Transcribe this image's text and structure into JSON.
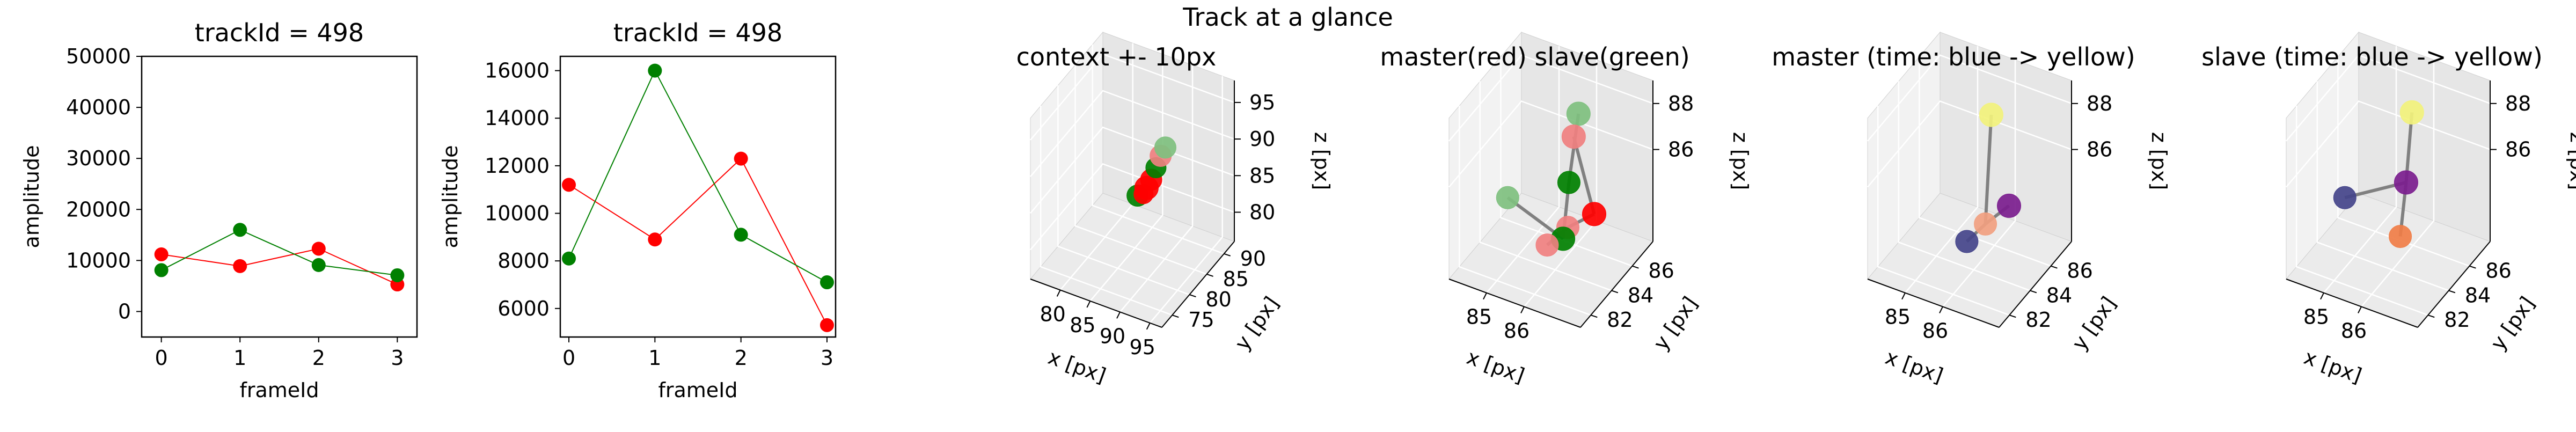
{
  "figure": {
    "suptitle": "Track at a glance"
  },
  "colors": {
    "master": "#ff0000",
    "slave": "#008000",
    "master_soft": "#f08080",
    "slave_soft": "#7fc07f",
    "pane_left": "#f2f2f2",
    "pane_right": "#e6e6e6",
    "pane_floor": "#ebebeb",
    "link": "#808080",
    "time_start": "#44448a",
    "time_end": "#f0f07a"
  },
  "chart_data": [
    {
      "type": "line",
      "title": "trackId = 498",
      "xlabel": "frameId",
      "ylabel": "amplitude",
      "x": [
        0,
        1,
        2,
        3
      ],
      "xlim": [
        -0.25,
        3.25
      ],
      "ylim": [
        -5000,
        50000
      ],
      "yticks": [
        0,
        10000,
        20000,
        30000,
        40000,
        50000
      ],
      "xticks": [
        0,
        1,
        2,
        3
      ],
      "series": [
        {
          "values": [
            11200,
            8900,
            12300,
            5300
          ],
          "color": "#ff0000"
        },
        {
          "values": [
            8100,
            16000,
            9100,
            7100
          ],
          "color": "#008000"
        }
      ]
    },
    {
      "type": "line",
      "title": "trackId = 498",
      "xlabel": "frameId",
      "ylabel": "amplitude",
      "x": [
        0,
        1,
        2,
        3
      ],
      "xlim": [
        -0.1,
        3.1
      ],
      "ylim": [
        4800,
        16600
      ],
      "yticks": [
        6000,
        8000,
        10000,
        12000,
        14000,
        16000
      ],
      "xticks": [
        0,
        1,
        2,
        3
      ],
      "series": [
        {
          "values": [
            11200,
            8900,
            12300,
            5300
          ],
          "color": "#ff0000"
        },
        {
          "values": [
            8100,
            16000,
            9100,
            7100
          ],
          "color": "#008000"
        }
      ]
    },
    {
      "type": "scatter",
      "title": "context +- 10px",
      "xlabel": "x [px]",
      "ylabel": "y [px]",
      "zlabel": "z [px]",
      "xlim": [
        75,
        97
      ],
      "ylim": [
        72,
        93
      ],
      "zlim": [
        76,
        98
      ],
      "xticks": [
        80,
        85,
        90,
        95
      ],
      "yticks": [
        75,
        80,
        85,
        90
      ],
      "zticks": [
        80,
        85,
        90,
        95
      ],
      "points": [
        {
          "x": 86,
          "y": 84,
          "z": 84,
          "color": "#008000",
          "r": 20
        },
        {
          "x": 87.5,
          "y": 84,
          "z": 85.5,
          "color": "#ff0000",
          "r": 22
        },
        {
          "x": 88,
          "y": 84.5,
          "z": 86.5,
          "color": "#ff0000",
          "r": 20
        },
        {
          "x": 87,
          "y": 84,
          "z": 84.5,
          "color": "#ff0000",
          "r": 18
        },
        {
          "x": 88.5,
          "y": 85,
          "z": 88,
          "color": "#008000",
          "r": 19
        },
        {
          "x": 89,
          "y": 85.5,
          "z": 89.5,
          "color": "#f08080",
          "r": 20
        },
        {
          "x": 89.5,
          "y": 86,
          "z": 90.5,
          "color": "#7fc07f",
          "r": 20
        }
      ]
    },
    {
      "type": "scatter",
      "title": "master(red) slave(green)",
      "xlabel": "x [px]",
      "ylabel": "y [px]",
      "zlabel": "z [px]",
      "xlim": [
        84,
        87.5
      ],
      "ylim": [
        81,
        88
      ],
      "zlim": [
        82,
        89
      ],
      "xticks": [
        85,
        86
      ],
      "yticks": [
        82,
        84,
        86
      ],
      "zticks": [
        86,
        88
      ],
      "points": [
        {
          "x": 86.4,
          "y": 84.8,
          "z": 88.6,
          "color": "#7fc07f",
          "r": 22
        },
        {
          "x": 86.3,
          "y": 84.7,
          "z": 87.6,
          "color": "#f08080",
          "r": 22
        },
        {
          "x": 86.2,
          "y": 84.6,
          "z": 85.6,
          "color": "#008000",
          "r": 21
        },
        {
          "x": 86.9,
          "y": 84.5,
          "z": 84.7,
          "color": "#ff0000",
          "r": 22
        },
        {
          "x": 86.2,
          "y": 84.5,
          "z": 83.7,
          "color": "#f08080",
          "r": 21
        },
        {
          "x": 86.1,
          "y": 84.4,
          "z": 83.2,
          "color": "#008000",
          "r": 22
        },
        {
          "x": 84.9,
          "y": 83.4,
          "z": 84.8,
          "color": "#7fc07f",
          "r": 21
        },
        {
          "x": 86.2,
          "y": 82.5,
          "z": 84.0,
          "color": "#f08080",
          "r": 21
        }
      ],
      "links": [
        [
          0,
          2
        ],
        [
          2,
          5
        ],
        [
          5,
          6
        ],
        [
          1,
          3
        ],
        [
          3,
          4
        ],
        [
          4,
          7
        ]
      ]
    },
    {
      "type": "scatter",
      "title": "master (time: blue -> yellow)",
      "xlabel": "x [px]",
      "ylabel": "y [px]",
      "zlabel": "z [px]",
      "xlim": [
        84,
        87.5
      ],
      "ylim": [
        81,
        88
      ],
      "zlim": [
        82,
        89
      ],
      "xticks": [
        85,
        86
      ],
      "yticks": [
        82,
        84,
        86
      ],
      "zticks": [
        86,
        88
      ],
      "points": [
        {
          "x": 86.3,
          "y": 84.6,
          "z": 88.6,
          "color": "#f2f27c",
          "r": 22
        },
        {
          "x": 86.8,
          "y": 84.5,
          "z": 85.0,
          "color": "#7b1d8e",
          "r": 22
        },
        {
          "x": 86.2,
          "y": 84.4,
          "z": 83.9,
          "color": "#f1a080",
          "r": 21
        },
        {
          "x": 86.2,
          "y": 82.6,
          "z": 84.1,
          "color": "#44448a",
          "r": 21
        }
      ],
      "links": [
        [
          0,
          2
        ],
        [
          2,
          3
        ],
        [
          2,
          1
        ]
      ]
    },
    {
      "type": "scatter",
      "title": "slave (time: blue -> yellow)",
      "xlabel": "x [px]",
      "ylabel": "y [px]",
      "zlabel": "z [px]",
      "xlim": [
        84,
        87.5
      ],
      "ylim": [
        81,
        88
      ],
      "zlim": [
        82,
        89
      ],
      "xticks": [
        85,
        86
      ],
      "yticks": [
        82,
        84,
        86
      ],
      "zticks": [
        86,
        88
      ],
      "points": [
        {
          "x": 86.3,
          "y": 84.8,
          "z": 88.6,
          "color": "#f2f27c",
          "r": 22
        },
        {
          "x": 86.2,
          "y": 84.6,
          "z": 85.6,
          "color": "#7b1d8e",
          "r": 22
        },
        {
          "x": 86.1,
          "y": 84.4,
          "z": 83.3,
          "color": "#f07d46",
          "r": 21
        },
        {
          "x": 84.9,
          "y": 83.4,
          "z": 84.8,
          "color": "#44448a",
          "r": 21
        }
      ],
      "links": [
        [
          0,
          1
        ],
        [
          1,
          2
        ],
        [
          1,
          3
        ]
      ]
    }
  ]
}
